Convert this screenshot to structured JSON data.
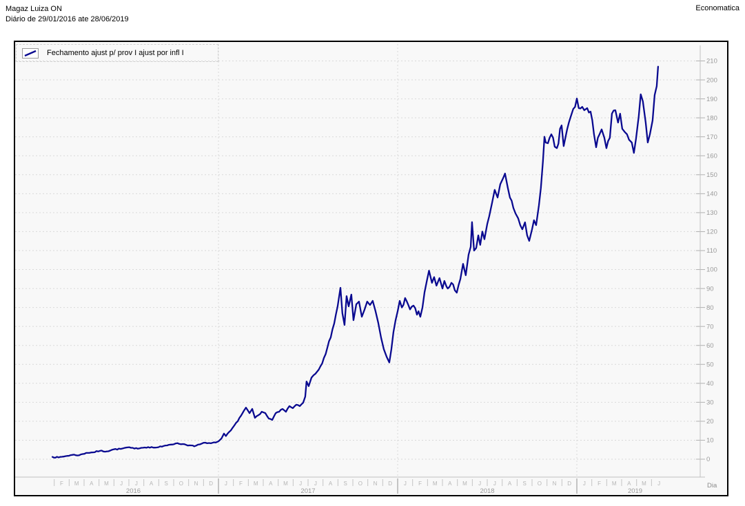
{
  "header": {
    "title": "Magaz Luiza ON",
    "subtitle": "Diário de 29/01/2016 ate 28/06/2019",
    "brand": "Economatica"
  },
  "legend": {
    "label": "Fechamento  ajust p/  prov I ajust por infl I"
  },
  "colors": {
    "line": "#0a0a90",
    "grid": "#d9d9d9",
    "axis": "#c0c0c0",
    "tick_label": "#9a9a9a",
    "month_label": "#b5b5b5",
    "year_tick": "#8f8f8f",
    "plot_bg": "#f8f8f8",
    "frame": "#000000"
  },
  "chart_data": {
    "type": "line",
    "title": "Magaz Luiza ON",
    "subtitle": "Diário de 29/01/2016 ate 28/06/2019",
    "series_name": "Fechamento ajust p/ prov I ajust por infl I",
    "x_axis": {
      "unit_label": "Dia",
      "x_unit": "months_since_2016_01_01",
      "range_start": "29/01/2016",
      "range_end": "28/06/2019",
      "years": [
        {
          "label": "2016",
          "start_month": 1,
          "months": [
            "F",
            "M",
            "A",
            "M",
            "J",
            "J",
            "A",
            "S",
            "O",
            "N",
            "D"
          ],
          "label_center_t": 6.3
        },
        {
          "label": "2017",
          "start_month": 0,
          "months": [
            "J",
            "F",
            "M",
            "A",
            "M",
            "J",
            "J",
            "A",
            "S",
            "O",
            "N",
            "D"
          ],
          "label_center_t": 18
        },
        {
          "label": "2018",
          "start_month": 0,
          "months": [
            "J",
            "F",
            "M",
            "A",
            "M",
            "J",
            "J",
            "A",
            "S",
            "O",
            "N",
            "D"
          ],
          "label_center_t": 30
        },
        {
          "label": "2019",
          "start_month": 0,
          "months": [
            "J",
            "F",
            "M",
            "A",
            "M",
            "J"
          ],
          "label_center_t": 39.9
        }
      ],
      "year_boundaries_t": [
        12,
        24,
        36
      ]
    },
    "y_axis": {
      "min": 0,
      "max": 210,
      "tick_step": 10,
      "side": "right"
    },
    "grid": true,
    "legend_position": "top-left",
    "points": [
      [
        0.88,
        1.2
      ],
      [
        1.29,
        0.9
      ],
      [
        1.75,
        1.6
      ],
      [
        2.22,
        2.3
      ],
      [
        2.68,
        2.1
      ],
      [
        3.14,
        3.3
      ],
      [
        3.6,
        3.6
      ],
      [
        4.06,
        4.4
      ],
      [
        4.52,
        4.1
      ],
      [
        4.98,
        5.2
      ],
      [
        5.45,
        5.4
      ],
      [
        5.91,
        6.2
      ],
      [
        6.37,
        5.6
      ],
      [
        6.83,
        6.0
      ],
      [
        7.29,
        6.4
      ],
      [
        7.75,
        6.1
      ],
      [
        8.21,
        6.6
      ],
      [
        8.68,
        7.6
      ],
      [
        9.14,
        8.3
      ],
      [
        9.6,
        8.0
      ],
      [
        10.06,
        7.3
      ],
      [
        10.38,
        6.8
      ],
      [
        10.75,
        7.8
      ],
      [
        11.12,
        8.7
      ],
      [
        11.49,
        8.4
      ],
      [
        11.81,
        8.8
      ],
      [
        12.0,
        9.4
      ],
      [
        12.2,
        10.9
      ],
      [
        12.37,
        13.5
      ],
      [
        12.5,
        12.2
      ],
      [
        12.83,
        15.2
      ],
      [
        13.06,
        17.8
      ],
      [
        13.29,
        20.0
      ],
      [
        13.52,
        23.0
      ],
      [
        13.7,
        25.5
      ],
      [
        13.84,
        27.2
      ],
      [
        14.08,
        24.3
      ],
      [
        14.26,
        26.5
      ],
      [
        14.44,
        21.8
      ],
      [
        14.67,
        23.2
      ],
      [
        14.9,
        25.0
      ],
      [
        15.14,
        24.3
      ],
      [
        15.37,
        21.4
      ],
      [
        15.6,
        20.7
      ],
      [
        15.83,
        24.3
      ],
      [
        16.06,
        25.0
      ],
      [
        16.29,
        26.5
      ],
      [
        16.52,
        25.0
      ],
      [
        16.75,
        28.0
      ],
      [
        16.98,
        26.9
      ],
      [
        17.21,
        28.7
      ],
      [
        17.44,
        28.0
      ],
      [
        17.67,
        29.8
      ],
      [
        17.81,
        33.0
      ],
      [
        17.9,
        41.0
      ],
      [
        18.04,
        38.5
      ],
      [
        18.23,
        43.0
      ],
      [
        18.37,
        44.3
      ],
      [
        18.6,
        46.1
      ],
      [
        18.83,
        49.0
      ],
      [
        19.06,
        53.4
      ],
      [
        19.29,
        58.8
      ],
      [
        19.52,
        64.2
      ],
      [
        19.75,
        71.5
      ],
      [
        19.98,
        80.6
      ],
      [
        20.17,
        90.4
      ],
      [
        20.3,
        77.0
      ],
      [
        20.44,
        70.8
      ],
      [
        20.58,
        86.0
      ],
      [
        20.72,
        80.6
      ],
      [
        20.9,
        86.8
      ],
      [
        21.04,
        73.3
      ],
      [
        21.23,
        81.7
      ],
      [
        21.41,
        83.1
      ],
      [
        21.6,
        75.1
      ],
      [
        21.78,
        78.8
      ],
      [
        21.96,
        83.1
      ],
      [
        22.15,
        81.3
      ],
      [
        22.33,
        83.5
      ],
      [
        22.52,
        78.0
      ],
      [
        22.7,
        72.0
      ],
      [
        22.89,
        64.0
      ],
      [
        23.07,
        58.0
      ],
      [
        23.26,
        54.0
      ],
      [
        23.44,
        51.0
      ],
      [
        23.58,
        58.0
      ],
      [
        23.72,
        67.0
      ],
      [
        23.86,
        73.3
      ],
      [
        24.0,
        78.0
      ],
      [
        24.14,
        83.5
      ],
      [
        24.28,
        80.0
      ],
      [
        24.5,
        85.0
      ],
      [
        24.83,
        79.0
      ],
      [
        25.06,
        81.0
      ],
      [
        25.29,
        76.2
      ],
      [
        25.4,
        78.0
      ],
      [
        25.52,
        75.1
      ],
      [
        25.66,
        80.0
      ],
      [
        25.8,
        88.0
      ],
      [
        25.98,
        95.0
      ],
      [
        26.1,
        99.4
      ],
      [
        26.3,
        93.0
      ],
      [
        26.44,
        96.0
      ],
      [
        26.6,
        91.5
      ],
      [
        26.8,
        95.5
      ],
      [
        27.0,
        90.0
      ],
      [
        27.13,
        94.0
      ],
      [
        27.27,
        91.0
      ],
      [
        27.36,
        90.0
      ],
      [
        27.6,
        93.0
      ],
      [
        27.83,
        89.0
      ],
      [
        27.96,
        87.8
      ],
      [
        28.2,
        95.0
      ],
      [
        28.38,
        103.0
      ],
      [
        28.56,
        97.0
      ],
      [
        28.75,
        107.8
      ],
      [
        28.89,
        112.0
      ],
      [
        28.98,
        125.0
      ],
      [
        29.12,
        110.0
      ],
      [
        29.26,
        111.4
      ],
      [
        29.4,
        118.0
      ],
      [
        29.53,
        113.0
      ],
      [
        29.67,
        120.0
      ],
      [
        29.81,
        116.0
      ],
      [
        30.0,
        124.0
      ],
      [
        30.13,
        128.0
      ],
      [
        30.32,
        135.0
      ],
      [
        30.5,
        142.0
      ],
      [
        30.69,
        138.0
      ],
      [
        30.87,
        145.0
      ],
      [
        31.05,
        148.0
      ],
      [
        31.19,
        150.6
      ],
      [
        31.38,
        143.0
      ],
      [
        31.52,
        138.0
      ],
      [
        31.75,
        132.5
      ],
      [
        31.89,
        129.6
      ],
      [
        32.07,
        127.0
      ],
      [
        32.21,
        123.4
      ],
      [
        32.35,
        121.2
      ],
      [
        32.53,
        124.9
      ],
      [
        32.67,
        118.0
      ],
      [
        32.81,
        115.1
      ],
      [
        33.0,
        121.2
      ],
      [
        33.13,
        126.0
      ],
      [
        33.27,
        123.4
      ],
      [
        33.46,
        133.9
      ],
      [
        33.59,
        143.0
      ],
      [
        33.73,
        157.0
      ],
      [
        33.83,
        170.0
      ],
      [
        33.92,
        167.0
      ],
      [
        34.06,
        166.6
      ],
      [
        34.29,
        171.3
      ],
      [
        34.52,
        164.8
      ],
      [
        34.66,
        164.0
      ],
      [
        34.98,
        176.0
      ],
      [
        35.12,
        165.1
      ],
      [
        35.35,
        173.9
      ],
      [
        35.58,
        180.4
      ],
      [
        35.76,
        184.7
      ],
      [
        36.0,
        190.2
      ],
      [
        36.13,
        185.1
      ],
      [
        36.36,
        185.8
      ],
      [
        36.5,
        184.0
      ],
      [
        36.69,
        185.1
      ],
      [
        36.92,
        183.3
      ],
      [
        37.15,
        171.3
      ],
      [
        37.29,
        164.5
      ],
      [
        37.52,
        171.3
      ],
      [
        37.66,
        173.9
      ],
      [
        37.84,
        169.5
      ],
      [
        37.98,
        164.0
      ],
      [
        38.21,
        169.5
      ],
      [
        38.35,
        182.2
      ],
      [
        38.58,
        184.0
      ],
      [
        38.76,
        177.5
      ],
      [
        38.9,
        182.2
      ],
      [
        39.04,
        174.2
      ],
      [
        39.22,
        172.4
      ],
      [
        39.36,
        171.3
      ],
      [
        39.5,
        168.4
      ],
      [
        39.68,
        167.0
      ],
      [
        39.82,
        161.5
      ],
      [
        39.96,
        168.8
      ],
      [
        40.15,
        181.1
      ],
      [
        40.28,
        192.4
      ],
      [
        40.42,
        188.7
      ],
      [
        40.61,
        177.5
      ],
      [
        40.75,
        167.0
      ],
      [
        40.89,
        171.3
      ],
      [
        41.07,
        178.6
      ],
      [
        41.21,
        192.0
      ],
      [
        41.35,
        196.7
      ],
      [
        41.44,
        207.0
      ]
    ]
  }
}
